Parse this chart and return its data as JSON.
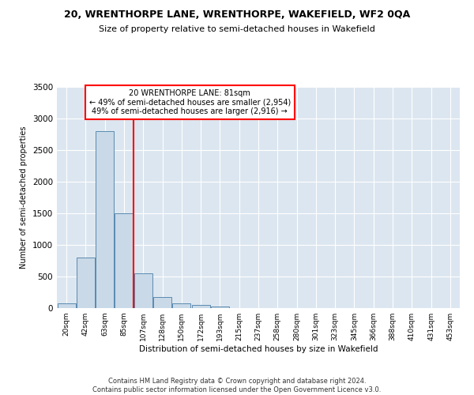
{
  "title": "20, WRENTHORPE LANE, WRENTHORPE, WAKEFIELD, WF2 0QA",
  "subtitle": "Size of property relative to semi-detached houses in Wakefield",
  "xlabel": "Distribution of semi-detached houses by size in Wakefield",
  "ylabel": "Number of semi-detached properties",
  "footer": "Contains HM Land Registry data © Crown copyright and database right 2024.\nContains public sector information licensed under the Open Government Licence v3.0.",
  "bar_color": "#c9d9e8",
  "bar_edge_color": "#5a8ab0",
  "categories": [
    "20sqm",
    "42sqm",
    "63sqm",
    "85sqm",
    "107sqm",
    "128sqm",
    "150sqm",
    "172sqm",
    "193sqm",
    "215sqm",
    "237sqm",
    "258sqm",
    "280sqm",
    "301sqm",
    "323sqm",
    "345sqm",
    "366sqm",
    "388sqm",
    "410sqm",
    "431sqm",
    "453sqm"
  ],
  "values": [
    80,
    800,
    2800,
    1500,
    550,
    175,
    80,
    50,
    30,
    5,
    2,
    1,
    1,
    0,
    0,
    0,
    0,
    0,
    0,
    0,
    0
  ],
  "red_line_x": 3.5,
  "annotation_title": "20 WRENTHORPE LANE: 81sqm",
  "annotation_line1": "← 49% of semi-detached houses are smaller (2,954)",
  "annotation_line2": "49% of semi-detached houses are larger (2,916) →",
  "ylim": [
    0,
    3500
  ],
  "yticks": [
    0,
    500,
    1000,
    1500,
    2000,
    2500,
    3000,
    3500
  ],
  "bg_color": "#dce6f0",
  "grid_color": "white",
  "annotation_box_color": "white",
  "annotation_box_edge": "red",
  "red_line_color": "red",
  "title_fontsize": 9,
  "subtitle_fontsize": 8
}
